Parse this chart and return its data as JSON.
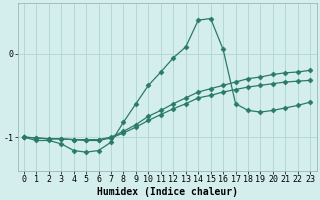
{
  "xlabel": "Humidex (Indice chaleur)",
  "bg_color": "#d4eeed",
  "grid_color": "#b0d4d0",
  "line_color": "#2a7a6a",
  "xlim": [
    -0.5,
    23.5
  ],
  "ylim": [
    -1.4,
    0.6
  ],
  "yticks": [
    -1,
    0
  ],
  "xticks": [
    0,
    1,
    2,
    3,
    4,
    5,
    6,
    7,
    8,
    9,
    10,
    11,
    12,
    13,
    14,
    15,
    16,
    17,
    18,
    19,
    20,
    21,
    22,
    23
  ],
  "line1_x": [
    0,
    1,
    2,
    3,
    4,
    5,
    6,
    7,
    8,
    9,
    10,
    11,
    12,
    13,
    14,
    15,
    16,
    17,
    18,
    19,
    20,
    21,
    22,
    23
  ],
  "line1_y": [
    -1.0,
    -1.04,
    -1.04,
    -1.08,
    -1.16,
    -1.18,
    -1.16,
    -1.06,
    -0.82,
    -0.6,
    -0.38,
    -0.22,
    -0.05,
    0.08,
    0.4,
    0.42,
    0.05,
    -0.6,
    -0.68,
    -0.7,
    -0.68,
    -0.65,
    -0.62,
    -0.58
  ],
  "line2_x": [
    0,
    1,
    2,
    3,
    4,
    5,
    6,
    7,
    8,
    9,
    10,
    11,
    12,
    13,
    14,
    15,
    16,
    17,
    18,
    19,
    20,
    21,
    22,
    23
  ],
  "line2_y": [
    -1.0,
    -1.01,
    -1.02,
    -1.02,
    -1.03,
    -1.03,
    -1.03,
    -1.0,
    -0.93,
    -0.85,
    -0.75,
    -0.68,
    -0.6,
    -0.53,
    -0.46,
    -0.42,
    -0.38,
    -0.34,
    -0.3,
    -0.28,
    -0.25,
    -0.23,
    -0.22,
    -0.2
  ],
  "line3_x": [
    0,
    1,
    2,
    3,
    4,
    5,
    6,
    7,
    8,
    9,
    10,
    11,
    12,
    13,
    14,
    15,
    16,
    17,
    18,
    19,
    20,
    21,
    22,
    23
  ],
  "line3_y": [
    -1.0,
    -1.01,
    -1.02,
    -1.02,
    -1.03,
    -1.04,
    -1.04,
    -1.01,
    -0.95,
    -0.88,
    -0.8,
    -0.73,
    -0.66,
    -0.6,
    -0.53,
    -0.5,
    -0.46,
    -0.43,
    -0.4,
    -0.38,
    -0.36,
    -0.34,
    -0.33,
    -0.32
  ],
  "marker": "D",
  "marker_size": 2.5,
  "line_width": 0.9,
  "tick_fontsize": 6,
  "xlabel_fontsize": 7
}
